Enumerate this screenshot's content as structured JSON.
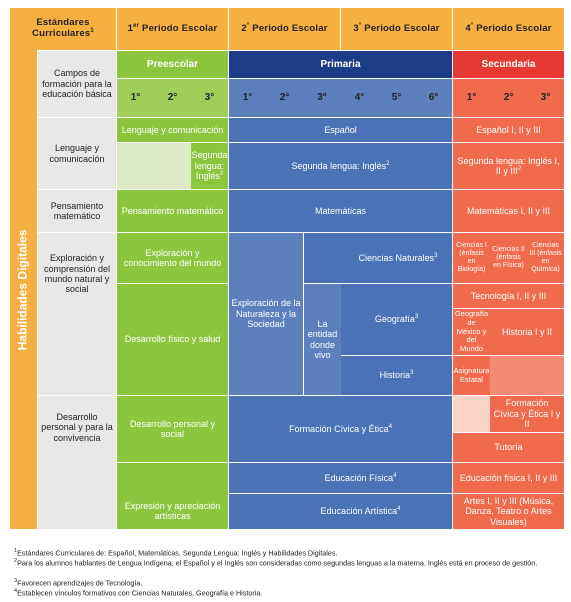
{
  "header": {
    "corner": "Estándares Curriculares",
    "corner_sup": "1",
    "p1_num": "1",
    "p1_sup": "er",
    "p1_rest": " Periodo Escolar",
    "p2_num": "2",
    "p2_sup": "°",
    "p2_rest": " Periodo Escolar",
    "p3_num": "3",
    "p3_sup": "°",
    "p3_rest": " Periodo Escolar",
    "p4_num": "4",
    "p4_sup": "°",
    "p4_rest": " Periodo Escolar"
  },
  "side_label": "Habilidades Digitales",
  "levels": {
    "campos": "Campos de formación para la educación básica",
    "preescolar": "Preescolar",
    "primaria": "Primaria",
    "secundaria": "Secundaria"
  },
  "grades": {
    "pre": [
      "1°",
      "2°",
      "3°"
    ],
    "pri": [
      "1°",
      "2°",
      "3°",
      "4°",
      "5°",
      "6°"
    ],
    "sec": [
      "1°",
      "2°",
      "3°"
    ]
  },
  "fields": {
    "lenguaje": "Lenguaje y comunicación",
    "pensamiento": "Pensamiento matemático",
    "exploracion": "Exploración y comprensión del mundo natural y social",
    "desarrollo": "Desarrollo personal y para la convivencia"
  },
  "cells": {
    "pre_lenguaje": "Lenguaje y comunicación",
    "pre_segunda": "Segunda lengua: Inglés",
    "pre_segunda_sup": "2",
    "espanol": "Español",
    "espanol_sec": "Español I, II y III",
    "segunda_pri": "Segunda lengua: Inglés",
    "segunda_pri_sup": "2",
    "segunda_sec": "Segunda lengua: Inglés I, II y III",
    "segunda_sec_sup": "2",
    "pre_pensamiento": "Pensamiento matemático",
    "matematicas": "Matemáticas",
    "matematicas_sec": "Matemáticas I, II y III",
    "pre_exploracion": "Exploración y conocimiento del mundo",
    "pre_desarrollo_fisico": "Desarrollo físico y salud",
    "exploracion_naturaleza": "Exploración de la Naturaleza y la Sociedad",
    "entidad": "La entidad donde vivo",
    "ciencias": "Ciencias Naturales",
    "ciencias_sup": "3",
    "geografia": "Geografía",
    "geografia_sup": "3",
    "historia": "Historia",
    "historia_sup": "3",
    "ciencias1": "Ciencias I (énfasis en Biología)",
    "ciencias2": "Ciencias II (énfasis en Física)",
    "ciencias3": "Ciencias III (énfasis en Química)",
    "tecnologia": "Tecnología I, II y III",
    "geo_mexico": "Geografía de México y del Mundo",
    "historia_sec": "Historia I y II",
    "asignatura": "Asignatura Estatal",
    "pre_desarrollo_personal": "Desarrollo personal y social",
    "formacion": "Formación Cívica y Ética",
    "formacion_sup": "4",
    "formacion_sec": "Formación Cívica y Ética I y II",
    "tutoria": "Tutoría",
    "educ_fisica": "Educación Física",
    "educ_fisica_sup": "4",
    "educ_fisica_sec": "Educación física I, II y III",
    "pre_expresion": "Expresión y apreciación artísticas",
    "educ_artistica": "Educación Artística",
    "educ_artistica_sup": "4",
    "artes_sec": "Artes I, II y III (Música, Danza, Teatro o Artes Visuales)"
  },
  "footnotes": [
    {
      "num": "1",
      "text": "Estándares Curriculares de: Español, Matemáticas, Segunda Lengua: Inglés y Habilidades Digitales."
    },
    {
      "num": "2",
      "text": "Para los alumnos hablantes de Lengua Indígena, el Español y el Inglés son consideradas como segundas lenguas a la materna. Inglés está en proceso de gestión."
    },
    {
      "num": "3",
      "text": "Favorecen aprendizajes de Tecnología."
    },
    {
      "num": "4",
      "text": "Establecen vínculos formativos con Ciencias Naturales, Geografía e Historia."
    }
  ],
  "colors": {
    "header": "#f6b042",
    "preescolar": "#8cc63f",
    "primaria": "#1d3c87",
    "secundaria": "#e53a33",
    "side": "#e8e8e8"
  }
}
